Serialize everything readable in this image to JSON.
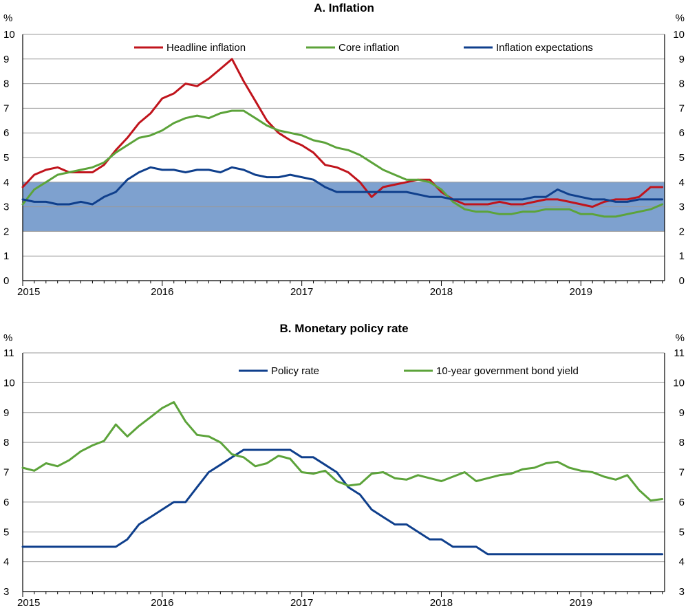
{
  "chart_data": [
    {
      "type": "line",
      "title": "A. Inflation",
      "unit_left": "%",
      "unit_right": "%",
      "ylim": [
        0,
        10
      ],
      "yticks": [
        0,
        1,
        2,
        3,
        4,
        5,
        6,
        7,
        8,
        9,
        10
      ],
      "xlim": [
        2015.0,
        2019.6
      ],
      "year_labels": [
        "2015",
        "2016",
        "2017",
        "2018",
        "2019"
      ],
      "grid": true,
      "legend_position": "top",
      "band": {
        "from": 2,
        "to": 4,
        "color": "#7ea1cf"
      },
      "series": [
        {
          "name": "Headline inflation",
          "color": "#c0141c",
          "x": [
            2015.0,
            2015.083,
            2015.167,
            2015.25,
            2015.333,
            2015.417,
            2015.5,
            2015.583,
            2015.667,
            2015.75,
            2015.833,
            2015.917,
            2016.0,
            2016.083,
            2016.167,
            2016.25,
            2016.333,
            2016.417,
            2016.5,
            2016.583,
            2016.667,
            2016.75,
            2016.833,
            2016.917,
            2017.0,
            2017.083,
            2017.167,
            2017.25,
            2017.333,
            2017.417,
            2017.5,
            2017.583,
            2017.667,
            2017.75,
            2017.833,
            2017.917,
            2018.0,
            2018.083,
            2018.167,
            2018.25,
            2018.333,
            2018.417,
            2018.5,
            2018.583,
            2018.667,
            2018.75,
            2018.833,
            2018.917,
            2019.0,
            2019.083,
            2019.167,
            2019.25,
            2019.333,
            2019.417,
            2019.5,
            2019.583
          ],
          "values": [
            3.8,
            4.3,
            4.5,
            4.6,
            4.4,
            4.4,
            4.4,
            4.7,
            5.3,
            5.8,
            6.4,
            6.8,
            7.4,
            7.6,
            8.0,
            7.9,
            8.2,
            8.6,
            9.0,
            8.1,
            7.3,
            6.5,
            6.0,
            5.7,
            5.5,
            5.2,
            4.7,
            4.6,
            4.4,
            4.0,
            3.4,
            3.8,
            3.9,
            4.0,
            4.1,
            4.1,
            3.6,
            3.3,
            3.1,
            3.1,
            3.1,
            3.2,
            3.1,
            3.1,
            3.2,
            3.3,
            3.3,
            3.2,
            3.1,
            3.0,
            3.2,
            3.3,
            3.3,
            3.4,
            3.8,
            3.8
          ]
        },
        {
          "name": "Core inflation",
          "color": "#5ca33a",
          "x": [
            2015.0,
            2015.083,
            2015.167,
            2015.25,
            2015.333,
            2015.417,
            2015.5,
            2015.583,
            2015.667,
            2015.75,
            2015.833,
            2015.917,
            2016.0,
            2016.083,
            2016.167,
            2016.25,
            2016.333,
            2016.417,
            2016.5,
            2016.583,
            2016.667,
            2016.75,
            2016.833,
            2016.917,
            2017.0,
            2017.083,
            2017.167,
            2017.25,
            2017.333,
            2017.417,
            2017.5,
            2017.583,
            2017.667,
            2017.75,
            2017.833,
            2017.917,
            2018.0,
            2018.083,
            2018.167,
            2018.25,
            2018.333,
            2018.417,
            2018.5,
            2018.583,
            2018.667,
            2018.75,
            2018.833,
            2018.917,
            2019.0,
            2019.083,
            2019.167,
            2019.25,
            2019.333,
            2019.417,
            2019.5,
            2019.583
          ],
          "values": [
            3.1,
            3.7,
            4.0,
            4.3,
            4.4,
            4.5,
            4.6,
            4.8,
            5.2,
            5.5,
            5.8,
            5.9,
            6.1,
            6.4,
            6.6,
            6.7,
            6.6,
            6.8,
            6.9,
            6.9,
            6.6,
            6.3,
            6.1,
            6.0,
            5.9,
            5.7,
            5.6,
            5.4,
            5.3,
            5.1,
            4.8,
            4.5,
            4.3,
            4.1,
            4.1,
            4.0,
            3.7,
            3.2,
            2.9,
            2.8,
            2.8,
            2.7,
            2.7,
            2.8,
            2.8,
            2.9,
            2.9,
            2.9,
            2.7,
            2.7,
            2.6,
            2.6,
            2.7,
            2.8,
            2.9,
            3.1
          ]
        },
        {
          "name": "Inflation expectations",
          "color": "#0f3f8c",
          "x": [
            2015.0,
            2015.083,
            2015.167,
            2015.25,
            2015.333,
            2015.417,
            2015.5,
            2015.583,
            2015.667,
            2015.75,
            2015.833,
            2015.917,
            2016.0,
            2016.083,
            2016.167,
            2016.25,
            2016.333,
            2016.417,
            2016.5,
            2016.583,
            2016.667,
            2016.75,
            2016.833,
            2016.917,
            2017.0,
            2017.083,
            2017.167,
            2017.25,
            2017.333,
            2017.417,
            2017.5,
            2017.583,
            2017.667,
            2017.75,
            2017.833,
            2017.917,
            2018.0,
            2018.083,
            2018.167,
            2018.25,
            2018.333,
            2018.417,
            2018.5,
            2018.583,
            2018.667,
            2018.75,
            2018.833,
            2018.917,
            2019.0,
            2019.083,
            2019.167,
            2019.25,
            2019.333,
            2019.417,
            2019.5,
            2019.583
          ],
          "values": [
            3.3,
            3.2,
            3.2,
            3.1,
            3.1,
            3.2,
            3.1,
            3.4,
            3.6,
            4.1,
            4.4,
            4.6,
            4.5,
            4.5,
            4.4,
            4.5,
            4.5,
            4.4,
            4.6,
            4.5,
            4.3,
            4.2,
            4.2,
            4.3,
            4.2,
            4.1,
            3.8,
            3.6,
            3.6,
            3.6,
            3.6,
            3.6,
            3.6,
            3.6,
            3.5,
            3.4,
            3.4,
            3.3,
            3.3,
            3.3,
            3.3,
            3.3,
            3.3,
            3.3,
            3.4,
            3.4,
            3.7,
            3.5,
            3.4,
            3.3,
            3.3,
            3.2,
            3.2,
            3.3,
            3.3,
            3.3
          ]
        }
      ]
    },
    {
      "type": "line",
      "title": "B. Monetary policy rate",
      "unit_left": "%",
      "unit_right": "%",
      "ylim": [
        3,
        11
      ],
      "yticks": [
        3,
        4,
        5,
        6,
        7,
        8,
        9,
        10,
        11
      ],
      "xlim": [
        2015.0,
        2019.6
      ],
      "year_labels": [
        "2015",
        "2016",
        "2017",
        "2018",
        "2019"
      ],
      "grid": true,
      "legend_position": "top",
      "series": [
        {
          "name": "Policy rate",
          "color": "#0f3f8c",
          "x": [
            2015.0,
            2015.083,
            2015.167,
            2015.25,
            2015.333,
            2015.417,
            2015.5,
            2015.583,
            2015.667,
            2015.75,
            2015.833,
            2015.917,
            2016.0,
            2016.083,
            2016.167,
            2016.25,
            2016.333,
            2016.417,
            2016.5,
            2016.583,
            2016.667,
            2016.75,
            2016.833,
            2016.917,
            2017.0,
            2017.083,
            2017.167,
            2017.25,
            2017.333,
            2017.417,
            2017.5,
            2017.583,
            2017.667,
            2017.75,
            2017.833,
            2017.917,
            2018.0,
            2018.083,
            2018.167,
            2018.25,
            2018.333,
            2018.417,
            2018.5,
            2018.583,
            2018.667,
            2018.75,
            2018.833,
            2018.917,
            2019.0,
            2019.083,
            2019.167,
            2019.25,
            2019.333,
            2019.417,
            2019.5,
            2019.583
          ],
          "values": [
            4.5,
            4.5,
            4.5,
            4.5,
            4.5,
            4.5,
            4.5,
            4.5,
            4.5,
            4.75,
            5.25,
            5.5,
            5.75,
            6.0,
            6.0,
            6.5,
            7.0,
            7.25,
            7.5,
            7.75,
            7.75,
            7.75,
            7.75,
            7.75,
            7.5,
            7.5,
            7.25,
            7.0,
            6.5,
            6.25,
            5.75,
            5.5,
            5.25,
            5.25,
            5.0,
            4.75,
            4.75,
            4.5,
            4.5,
            4.5,
            4.25,
            4.25,
            4.25,
            4.25,
            4.25,
            4.25,
            4.25,
            4.25,
            4.25,
            4.25,
            4.25,
            4.25,
            4.25,
            4.25,
            4.25,
            4.25
          ]
        },
        {
          "name": "10-year government bond yield",
          "color": "#5ca33a",
          "x": [
            2015.0,
            2015.083,
            2015.167,
            2015.25,
            2015.333,
            2015.417,
            2015.5,
            2015.583,
            2015.667,
            2015.75,
            2015.833,
            2015.917,
            2016.0,
            2016.083,
            2016.167,
            2016.25,
            2016.333,
            2016.417,
            2016.5,
            2016.583,
            2016.667,
            2016.75,
            2016.833,
            2016.917,
            2017.0,
            2017.083,
            2017.167,
            2017.25,
            2017.333,
            2017.417,
            2017.5,
            2017.583,
            2017.667,
            2017.75,
            2017.833,
            2017.917,
            2018.0,
            2018.083,
            2018.167,
            2018.25,
            2018.333,
            2018.417,
            2018.5,
            2018.583,
            2018.667,
            2018.75,
            2018.833,
            2018.917,
            2019.0,
            2019.083,
            2019.167,
            2019.25,
            2019.333,
            2019.417,
            2019.5,
            2019.583
          ],
          "values": [
            7.15,
            7.05,
            7.3,
            7.2,
            7.4,
            7.7,
            7.9,
            8.05,
            8.6,
            8.2,
            8.55,
            8.85,
            9.15,
            9.35,
            8.7,
            8.25,
            8.2,
            8.0,
            7.6,
            7.5,
            7.2,
            7.3,
            7.55,
            7.45,
            7.0,
            6.95,
            7.05,
            6.7,
            6.55,
            6.6,
            6.95,
            7.0,
            6.8,
            6.75,
            6.9,
            6.8,
            6.7,
            6.85,
            7.0,
            6.7,
            6.8,
            6.9,
            6.95,
            7.1,
            7.15,
            7.3,
            7.35,
            7.15,
            7.05,
            7.0,
            6.85,
            6.75,
            6.9,
            6.4,
            6.05,
            6.1
          ]
        }
      ]
    }
  ]
}
